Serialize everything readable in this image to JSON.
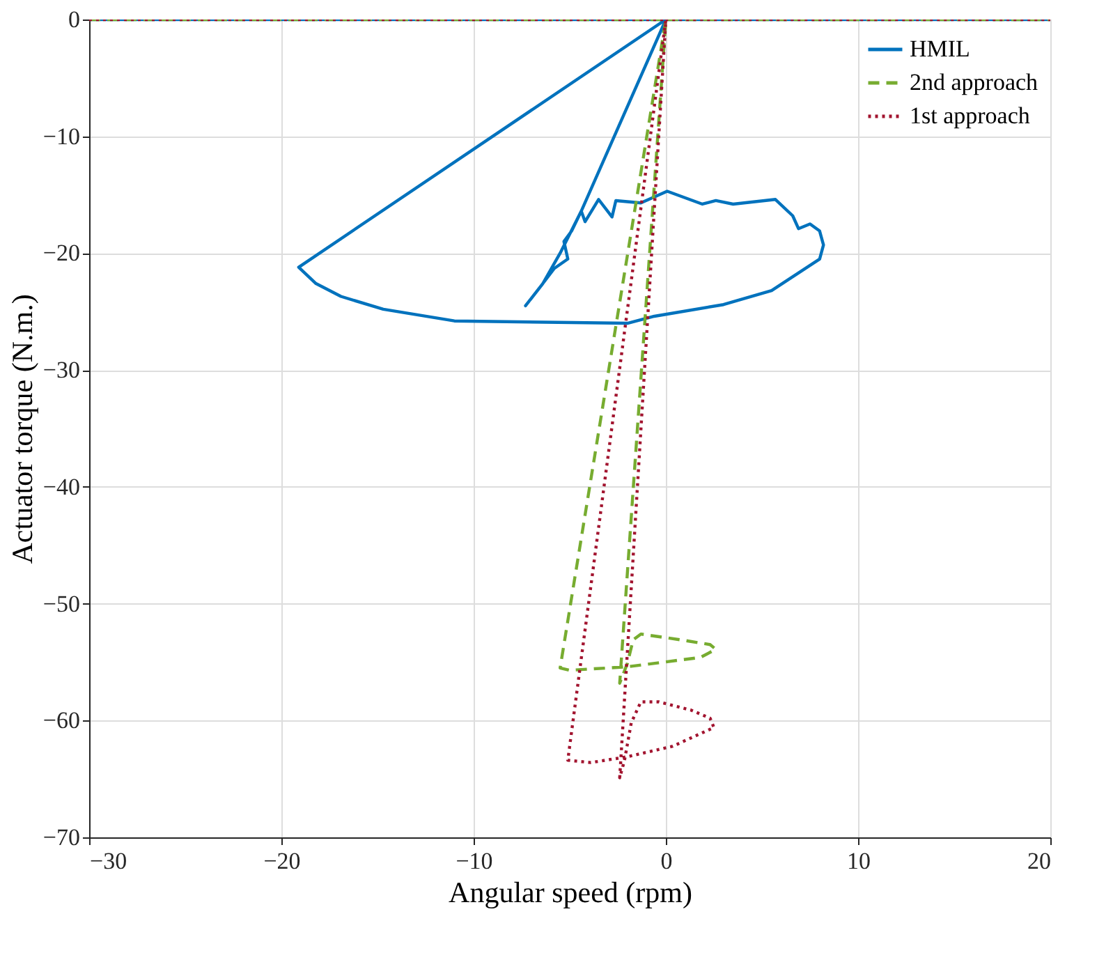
{
  "chart_data": {
    "type": "line",
    "xlabel": "Angular speed (rpm)",
    "ylabel": "Actuator torque (N.m.)",
    "xlim": [
      -30,
      20
    ],
    "xticks": [
      -30,
      -20,
      -10,
      0,
      10,
      20
    ],
    "ylim": [
      -70,
      0
    ],
    "yticks": [
      -70,
      -60,
      -50,
      -40,
      -30,
      -20,
      -10,
      0
    ],
    "grid": true,
    "legend": "top right",
    "marker": "none",
    "series": [
      {
        "name": "HMIL",
        "color": "#0072bd",
        "line_style": "solid",
        "x": [
          -30,
          0,
          -19.1,
          -18.2,
          -16.9,
          -14.7,
          -11.0,
          -2.0,
          -0.6,
          3.0,
          5.5,
          8.0,
          8.2,
          8.0,
          7.5,
          6.9,
          6.6,
          5.7,
          3.5,
          2.6,
          1.9,
          0.07,
          -1.3,
          -2.6,
          -2.8,
          -3.5,
          -4.2,
          -4.4,
          -4.9,
          -5.3,
          -5.1,
          -5.8,
          -6.4,
          -7.3,
          -6.4,
          -5.5,
          -4.4,
          0,
          20
        ],
        "values": [
          0,
          0,
          -21.2,
          -22.6,
          -23.7,
          -24.8,
          -25.8,
          -26.0,
          -25.4,
          -24.4,
          -23.2,
          -20.5,
          -19.3,
          -18.1,
          -17.5,
          -17.9,
          -16.8,
          -15.4,
          -15.8,
          -15.5,
          -15.8,
          -14.7,
          -15.7,
          -15.5,
          -16.9,
          -15.4,
          -17.3,
          -16.4,
          -18.1,
          -19.0,
          -20.5,
          -21.3,
          -22.6,
          -24.5,
          -22.6,
          -20.0,
          -16.4,
          0,
          0
        ]
      },
      {
        "name": "2nd approach",
        "color": "#77ac30",
        "line_style": "dashed",
        "x": [
          -30,
          0,
          -5.5,
          -5.0,
          -2.0,
          1.8,
          2.6,
          2.3,
          0.8,
          -1.3,
          -1.7,
          -2.0,
          -2.4,
          0,
          20
        ],
        "values": [
          0,
          0,
          -55.5,
          -55.7,
          -55.4,
          -54.6,
          -53.9,
          -53.5,
          -53.1,
          -52.6,
          -53.1,
          -55.1,
          -56.8,
          0,
          0
        ]
      },
      {
        "name": "1st approach",
        "color": "#a2142f",
        "line_style": "dotted",
        "x": [
          -30,
          0,
          -5.1,
          -3.9,
          -2.0,
          0.36,
          2.5,
          2.3,
          1.3,
          -0.36,
          -1.3,
          -1.8,
          -2.15,
          -2.4,
          0,
          20
        ],
        "values": [
          0,
          0,
          -63.4,
          -63.6,
          -63.1,
          -62.2,
          -60.6,
          -59.8,
          -59.1,
          -58.4,
          -58.4,
          -60.2,
          -63.4,
          -64.9,
          0,
          0
        ]
      }
    ]
  }
}
